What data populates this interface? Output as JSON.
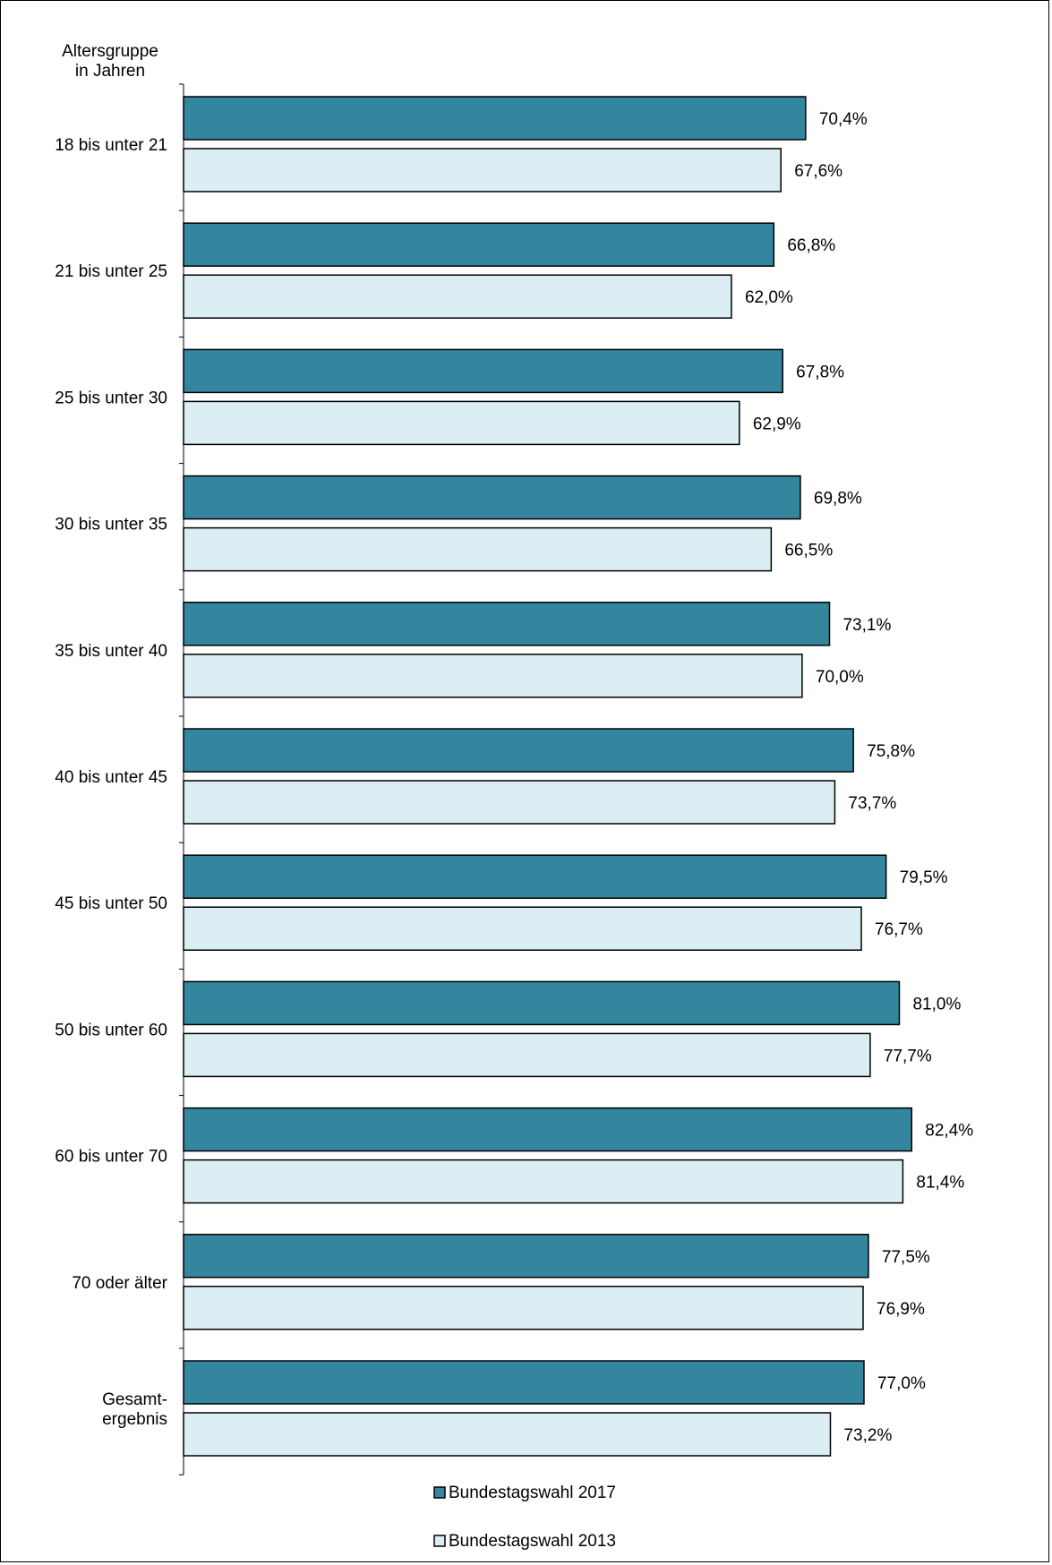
{
  "chart_data": {
    "type": "bar",
    "orientation": "horizontal",
    "axis_title_lines": [
      "Altersgruppe",
      "in Jahren"
    ],
    "categories": [
      [
        "18 bis unter 21"
      ],
      [
        "21 bis unter 25"
      ],
      [
        "25 bis unter 30"
      ],
      [
        "30 bis unter 35"
      ],
      [
        "35 bis unter 40"
      ],
      [
        "40 bis unter 45"
      ],
      [
        "45 bis unter 50"
      ],
      [
        "50 bis unter 60"
      ],
      [
        "60 bis unter 70"
      ],
      [
        "70 oder älter"
      ],
      [
        "Gesamt-",
        "ergebnis"
      ]
    ],
    "series": [
      {
        "name": "Bundestagswahl 2017",
        "color": "#33869d",
        "values": [
          70.4,
          66.8,
          67.8,
          69.8,
          73.1,
          75.8,
          79.5,
          81.0,
          82.4,
          77.5,
          77.0
        ],
        "labels": [
          "70,4%",
          "66,8%",
          "67,8%",
          "69,8%",
          "73,1%",
          "75,8%",
          "79,5%",
          "81,0%",
          "82,4%",
          "77,5%",
          "77,0%"
        ]
      },
      {
        "name": "Bundestagswahl 2013",
        "color": "#dbeef3",
        "values": [
          67.6,
          62.0,
          62.9,
          66.5,
          70.0,
          73.7,
          76.7,
          77.7,
          81.4,
          76.9,
          73.2
        ],
        "labels": [
          "67,6%",
          "62,0%",
          "62,9%",
          "66,5%",
          "70,0%",
          "73,7%",
          "76,7%",
          "77,7%",
          "81,4%",
          "76,9%",
          "73,2%"
        ]
      }
    ],
    "xlim": [
      0,
      100
    ],
    "grid": false,
    "legend_position": "bottom"
  }
}
